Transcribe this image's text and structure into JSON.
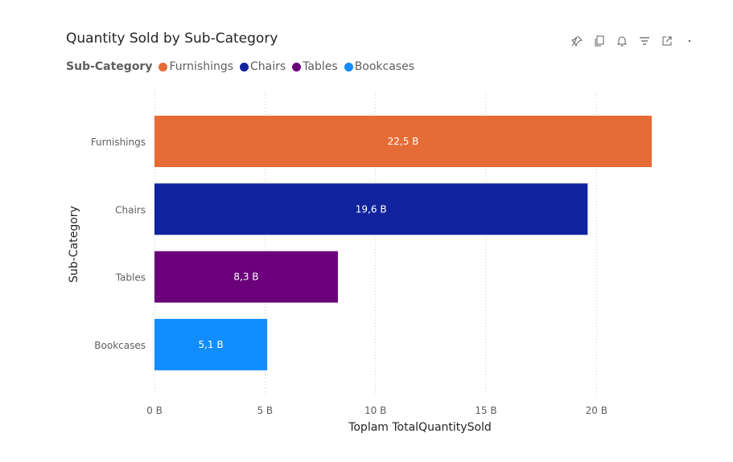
{
  "title": "Quantity Sold by Sub-Category",
  "toolbar": {
    "icons": [
      "pin-icon",
      "copy-icon",
      "bell-icon",
      "filter-icon",
      "focus-mode-icon",
      "more-options-icon"
    ]
  },
  "legend": {
    "title": "Sub-Category",
    "items": [
      {
        "label": "Furnishings",
        "color": "#E66C37"
      },
      {
        "label": "Chairs",
        "color": "#12239E"
      },
      {
        "label": "Tables",
        "color": "#6B007B"
      },
      {
        "label": "Bookcases",
        "color": "#118DFF"
      }
    ]
  },
  "chart_data": {
    "type": "bar",
    "orientation": "horizontal",
    "title": "Quantity Sold by Sub-Category",
    "xlabel": "Toplam TotalQuantitySold",
    "ylabel": "Sub-Category",
    "categories": [
      "Furnishings",
      "Chairs",
      "Tables",
      "Bookcases"
    ],
    "values": [
      22.5,
      19.6,
      8.3,
      5.1
    ],
    "data_labels": [
      "22,5 B",
      "19,6 B",
      "8,3 B",
      "5,1 B"
    ],
    "colors": [
      "#E66C37",
      "#12239E",
      "#6B007B",
      "#118DFF"
    ],
    "xlim": [
      0,
      22.5
    ],
    "x_ticks": [
      0,
      5,
      10,
      15,
      20
    ],
    "x_tick_labels": [
      "0 B",
      "5 B",
      "10 B",
      "15 B",
      "20 B"
    ],
    "grid": "vertical dotted",
    "legend_position": "top-left"
  }
}
